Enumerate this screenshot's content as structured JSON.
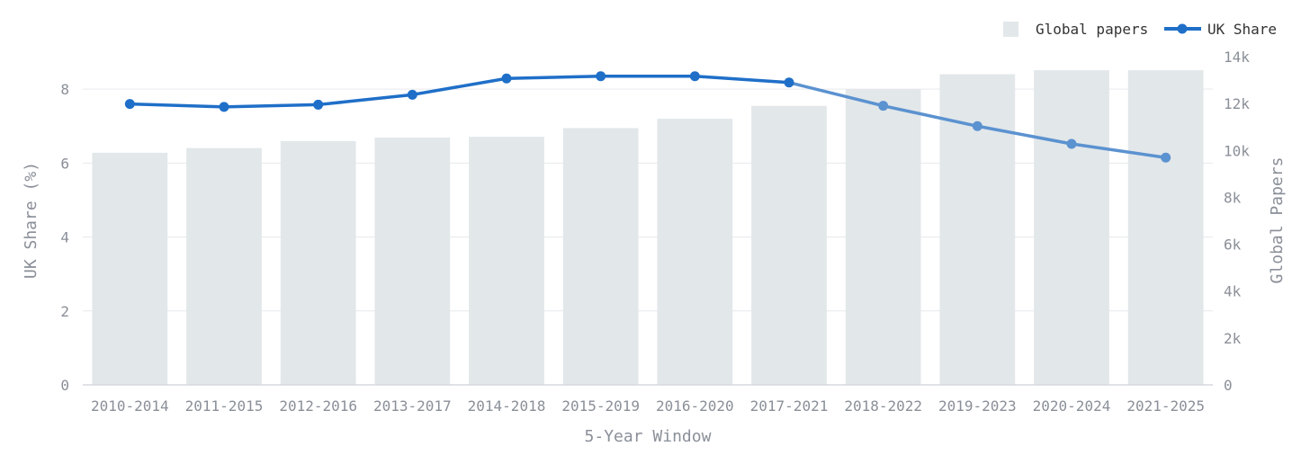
{
  "chart_data": {
    "type": "bar",
    "categories": [
      "2010-2014",
      "2011-2015",
      "2012-2016",
      "2013-2017",
      "2014-2018",
      "2015-2019",
      "2016-2020",
      "2017-2021",
      "2018-2022",
      "2019-2023",
      "2020-2024",
      "2021-2025"
    ],
    "series": [
      {
        "name": "Global papers",
        "type": "bar",
        "axis": "right",
        "values": [
          9900,
          10100,
          10400,
          10550,
          10580,
          10950,
          11350,
          11900,
          12600,
          13250,
          13420,
          13420
        ]
      },
      {
        "name": "UK Share",
        "type": "line",
        "axis": "left",
        "values": [
          7.6,
          7.52,
          7.58,
          7.85,
          8.29,
          8.35,
          8.35,
          8.18,
          7.55,
          7.0,
          6.52,
          6.15
        ]
      }
    ],
    "xlabel": "5-Year Window",
    "ylabel": "UK Share (%)",
    "y2label": "Global Papers",
    "ylim": [
      0,
      8.88
    ],
    "y2lim": [
      0,
      14000
    ],
    "yticks": [
      "0",
      "2",
      "4",
      "6",
      "8"
    ],
    "y2ticks": [
      "0",
      "2k",
      "4k",
      "6k",
      "8k",
      "10k",
      "12k",
      "14k"
    ],
    "grid": true,
    "legend_position": "top-right",
    "colors": {
      "bar": "#e2e7ea",
      "line": "#1f6fc8",
      "line_faded": "#5b92d0"
    }
  }
}
